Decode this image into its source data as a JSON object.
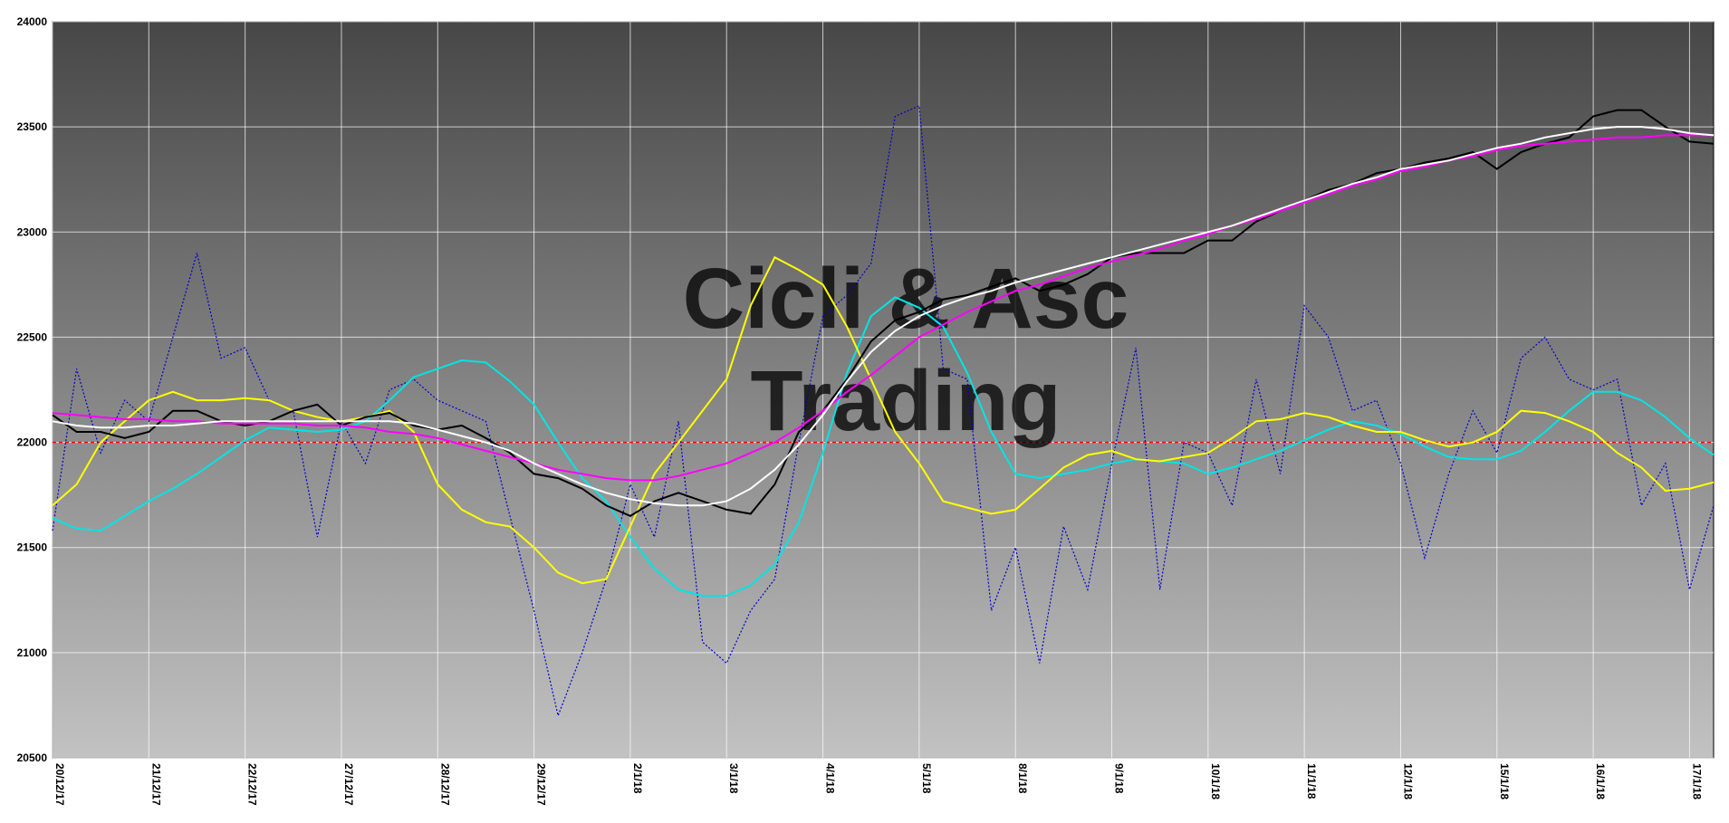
{
  "chart_data": {
    "type": "line",
    "watermark": [
      "Cicli & Asc",
      "Trading"
    ],
    "watermark_color": "#8b0000",
    "categories": [
      "20/12/17",
      null,
      null,
      null,
      "21/12/17",
      null,
      null,
      null,
      "22/12/17",
      null,
      null,
      null,
      "27/12/17",
      null,
      null,
      null,
      "28/12/17",
      null,
      null,
      null,
      "29/12/17",
      null,
      null,
      null,
      "2/1/18",
      null,
      null,
      null,
      "3/1/18",
      null,
      null,
      null,
      "4/1/18",
      null,
      null,
      null,
      "5/1/18",
      null,
      null,
      null,
      "8/1/18",
      null,
      null,
      null,
      "9/1/18",
      null,
      null,
      null,
      "10/1/18",
      null,
      null,
      null,
      "11/1/18",
      null,
      null,
      null,
      "12/1/18",
      null,
      null,
      null,
      "15/1/18",
      null,
      null,
      null,
      "16/1/18",
      null,
      null,
      null,
      "17/1/18",
      null
    ],
    "ylim": [
      20500,
      24000
    ],
    "yticks": [
      20500,
      21000,
      21500,
      22000,
      22500,
      23000,
      23500,
      24000
    ],
    "grid": true,
    "hline": {
      "value": 22000,
      "color": "#ff0000"
    },
    "series": [
      {
        "color": "#0000cc",
        "dashed": true,
        "values": [
          21580,
          22350,
          21950,
          22200,
          22100,
          22500,
          22900,
          22400,
          22450,
          22200,
          22150,
          21550,
          22100,
          21900,
          22250,
          22300,
          22200,
          22150,
          22100,
          21650,
          21200,
          20700,
          21000,
          21350,
          21800,
          21550,
          22100,
          21050,
          20950,
          21200,
          21350,
          22000,
          22600,
          22700,
          22850,
          23550,
          23600,
          22350,
          22300,
          21200,
          21500,
          20950,
          21600,
          21300,
          21900,
          22450,
          21300,
          22000,
          21950,
          21700,
          22300,
          21850,
          22650,
          22500,
          22150,
          22200,
          21900,
          21450,
          21850,
          22150,
          21950,
          22400,
          22500,
          22300,
          22250,
          22300,
          21700,
          21900,
          21300,
          21700
        ]
      },
      {
        "color": "#00e5e5",
        "values": [
          21640,
          21590,
          21580,
          21650,
          21720,
          21780,
          21850,
          21930,
          22010,
          22070,
          22060,
          22050,
          22060,
          22100,
          22200,
          22310,
          22350,
          22390,
          22380,
          22290,
          22180,
          22000,
          21830,
          21720,
          21550,
          21400,
          21300,
          21270,
          21270,
          21320,
          21420,
          21620,
          21950,
          22330,
          22600,
          22690,
          22640,
          22550,
          22330,
          22050,
          21850,
          21830,
          21850,
          21870,
          21900,
          21920,
          21910,
          21900,
          21850,
          21880,
          21920,
          21960,
          22010,
          22060,
          22100,
          22080,
          22040,
          21980,
          21930,
          21920,
          21920,
          21960,
          22050,
          22150,
          22240,
          22240,
          22200,
          22120,
          22020,
          21940
        ]
      },
      {
        "color": "#ffff00",
        "values": [
          21700,
          21800,
          22000,
          22100,
          22200,
          22240,
          22200,
          22200,
          22210,
          22200,
          22150,
          22120,
          22100,
          22120,
          22150,
          22050,
          21800,
          21680,
          21620,
          21600,
          21500,
          21380,
          21330,
          21350,
          21600,
          21850,
          22000,
          22150,
          22300,
          22650,
          22880,
          22820,
          22750,
          22550,
          22300,
          22050,
          21900,
          21720,
          21690,
          21660,
          21680,
          21780,
          21880,
          21940,
          21960,
          21920,
          21910,
          21930,
          21950,
          22020,
          22100,
          22110,
          22140,
          22120,
          22080,
          22050,
          22050,
          22010,
          21980,
          22000,
          22050,
          22150,
          22140,
          22100,
          22050,
          21950,
          21880,
          21770,
          21780,
          21810
        ]
      },
      {
        "color": "#000000",
        "values": [
          22130,
          22050,
          22050,
          22020,
          22050,
          22150,
          22150,
          22100,
          22080,
          22100,
          22150,
          22180,
          22080,
          22120,
          22140,
          22080,
          22060,
          22080,
          22020,
          21950,
          21850,
          21830,
          21780,
          21700,
          21650,
          21720,
          21760,
          21720,
          21680,
          21660,
          21800,
          22050,
          22150,
          22300,
          22480,
          22580,
          22620,
          22680,
          22700,
          22740,
          22780,
          22720,
          22750,
          22800,
          22880,
          22900,
          22900,
          22900,
          22960,
          22960,
          23050,
          23100,
          23150,
          23200,
          23230,
          23280,
          23300,
          23330,
          23350,
          23380,
          23300,
          23380,
          23420,
          23450,
          23550,
          23580,
          23580,
          23500,
          23430,
          23420
        ]
      },
      {
        "color": "#ff00ff",
        "values": [
          22140,
          22130,
          22120,
          22110,
          22110,
          22100,
          22100,
          22090,
          22090,
          22090,
          22090,
          22080,
          22080,
          22070,
          22050,
          22040,
          22020,
          21990,
          21960,
          21930,
          21900,
          21870,
          21850,
          21830,
          21820,
          21820,
          21840,
          21870,
          21900,
          21950,
          22000,
          22070,
          22150,
          22240,
          22320,
          22410,
          22500,
          22560,
          22620,
          22670,
          22720,
          22750,
          22790,
          22830,
          22860,
          22890,
          22920,
          22960,
          22990,
          23030,
          23060,
          23100,
          23140,
          23180,
          23220,
          23250,
          23290,
          23310,
          23340,
          23360,
          23390,
          23410,
          23420,
          23430,
          23440,
          23450,
          23450,
          23460,
          23460,
          23460
        ]
      },
      {
        "color": "#ffffff",
        "values": [
          22100,
          22080,
          22070,
          22070,
          22080,
          22080,
          22090,
          22100,
          22100,
          22100,
          22100,
          22100,
          22100,
          22100,
          22100,
          22090,
          22060,
          22030,
          22000,
          21960,
          21900,
          21850,
          21800,
          21760,
          21730,
          21710,
          21700,
          21700,
          21720,
          21780,
          21870,
          21990,
          22130,
          22290,
          22430,
          22530,
          22600,
          22650,
          22690,
          22720,
          22760,
          22790,
          22820,
          22850,
          22880,
          22910,
          22940,
          22970,
          23000,
          23030,
          23070,
          23110,
          23150,
          23190,
          23230,
          23260,
          23300,
          23320,
          23340,
          23370,
          23400,
          23420,
          23450,
          23470,
          23490,
          23500,
          23500,
          23490,
          23470,
          23460
        ]
      }
    ]
  }
}
